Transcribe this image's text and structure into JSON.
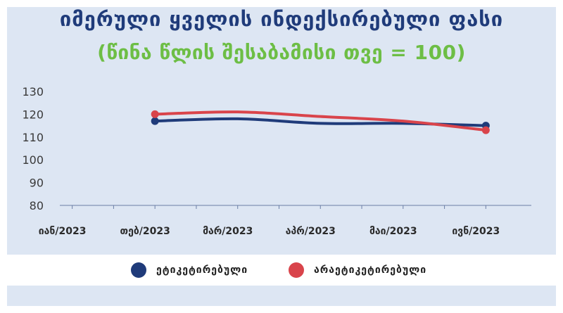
{
  "title": "იმერული ყველის ინდექსირებული ფასი",
  "subtitle": "(წინა წლის შესაბამისი თვე = 100)",
  "colors": {
    "title": "#1f3b7a",
    "subtitle": "#6dbe45",
    "background": "#dde6f3",
    "series_labeled": "#1f3b7a",
    "series_unlabeled": "#d9444b"
  },
  "chart_data": {
    "type": "line",
    "categories": [
      "იან/2023",
      "თებ/2023",
      "მარ/2023",
      "აპრ/2023",
      "მაი/2023",
      "ივნ/2023"
    ],
    "series": [
      {
        "name": "ეტიკეტირებული",
        "values": [
          null,
          117,
          118,
          116,
          116,
          115
        ]
      },
      {
        "name": "არაეტიკეტირებული",
        "values": [
          null,
          120,
          121,
          119,
          117,
          113
        ]
      }
    ],
    "ylim": [
      80,
      130
    ],
    "yticks": [
      80,
      90,
      100,
      110,
      120,
      130
    ],
    "grid": false,
    "legend": "bottom",
    "xlabel": "",
    "ylabel": ""
  }
}
